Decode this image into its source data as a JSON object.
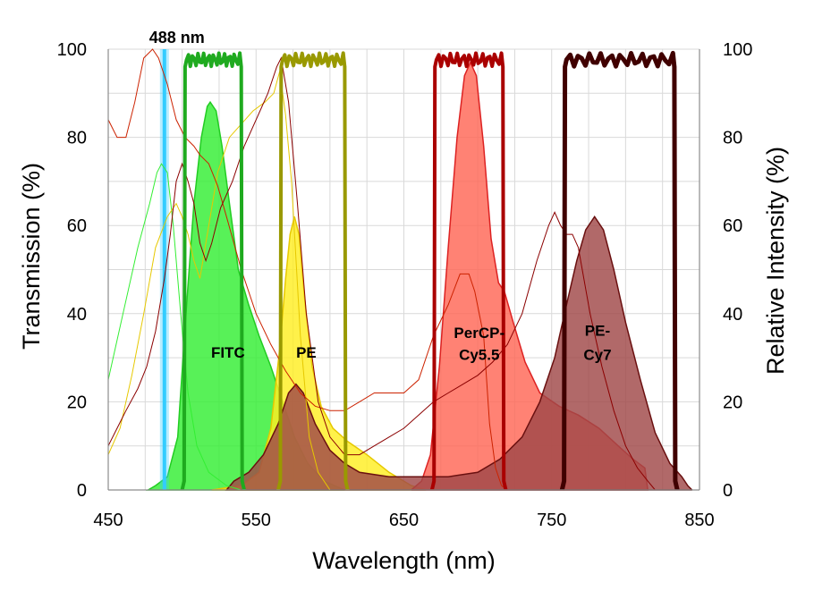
{
  "chart_data": {
    "type": "area",
    "xlabel": "Wavelength (nm)",
    "ylabel": "Transmission (%)",
    "y2label": "Relative Intensity (%)",
    "xlim": [
      450,
      850
    ],
    "ylim": [
      0,
      100
    ],
    "x_ticks": [
      "450",
      "550",
      "650",
      "750",
      "850"
    ],
    "y_ticks": [
      "0",
      "20",
      "40",
      "60",
      "80",
      "100"
    ],
    "y2_ticks": [
      "0",
      "20",
      "40",
      "60",
      "80",
      "100"
    ],
    "laser": {
      "label": "488 nm",
      "wavelength": 488,
      "color": "#33ccff"
    },
    "emission_series": [
      {
        "name": "FITC",
        "color": "#33ee33",
        "edge": "#22cc22",
        "peak_nm": 519,
        "peak": 88,
        "points": [
          [
            477,
            0
          ],
          [
            482,
            1
          ],
          [
            490,
            3
          ],
          [
            497,
            12
          ],
          [
            503,
            42
          ],
          [
            508,
            65
          ],
          [
            513,
            80
          ],
          [
            517,
            87
          ],
          [
            519,
            88
          ],
          [
            523,
            86
          ],
          [
            527,
            78
          ],
          [
            532,
            65
          ],
          [
            538,
            50
          ],
          [
            545,
            42
          ],
          [
            552,
            35
          ],
          [
            560,
            28
          ],
          [
            568,
            20
          ],
          [
            576,
            12
          ],
          [
            585,
            6
          ],
          [
            596,
            2
          ],
          [
            610,
            0
          ]
        ]
      },
      {
        "name": "PE",
        "color": "#ffee22",
        "edge": "#e6c800",
        "peak_nm": 576,
        "peak": 62,
        "points": [
          [
            520,
            0
          ],
          [
            540,
            1
          ],
          [
            552,
            4
          ],
          [
            560,
            14
          ],
          [
            566,
            32
          ],
          [
            570,
            48
          ],
          [
            573,
            58
          ],
          [
            576,
            62
          ],
          [
            579,
            58
          ],
          [
            583,
            43
          ],
          [
            588,
            28
          ],
          [
            594,
            19
          ],
          [
            602,
            14
          ],
          [
            612,
            11
          ],
          [
            625,
            8
          ],
          [
            640,
            4
          ],
          [
            655,
            1
          ],
          [
            665,
            0
          ]
        ]
      },
      {
        "name": "PerCP-Cy5.5",
        "color": "#ff6655",
        "edge": "#dd2222",
        "peak_nm": 695,
        "peak": 97,
        "points": [
          [
            655,
            0
          ],
          [
            662,
            2
          ],
          [
            668,
            8
          ],
          [
            674,
            28
          ],
          [
            680,
            55
          ],
          [
            686,
            80
          ],
          [
            691,
            94
          ],
          [
            695,
            97
          ],
          [
            699,
            94
          ],
          [
            704,
            78
          ],
          [
            709,
            57
          ],
          [
            714,
            47
          ],
          [
            718,
            45
          ],
          [
            724,
            38
          ],
          [
            732,
            29
          ],
          [
            742,
            22
          ],
          [
            755,
            19
          ],
          [
            768,
            17
          ],
          [
            782,
            14
          ],
          [
            795,
            10
          ],
          [
            805,
            7
          ],
          [
            813,
            5
          ],
          [
            815,
            0
          ]
        ]
      },
      {
        "name": "PE-Cy7",
        "color": "#a04848",
        "edge": "#6a1010",
        "peak_nm": 779,
        "peak": 62,
        "points": [
          [
            530,
            0
          ],
          [
            535,
            2
          ],
          [
            545,
            4
          ],
          [
            555,
            8
          ],
          [
            565,
            15
          ],
          [
            572,
            22
          ],
          [
            577,
            24
          ],
          [
            582,
            22
          ],
          [
            590,
            15
          ],
          [
            600,
            9
          ],
          [
            610,
            6
          ],
          [
            620,
            4
          ],
          [
            640,
            3
          ],
          [
            660,
            3
          ],
          [
            680,
            3
          ],
          [
            700,
            4
          ],
          [
            715,
            7
          ],
          [
            730,
            12
          ],
          [
            742,
            20
          ],
          [
            752,
            30
          ],
          [
            760,
            42
          ],
          [
            767,
            52
          ],
          [
            773,
            59
          ],
          [
            779,
            62
          ],
          [
            785,
            59
          ],
          [
            792,
            50
          ],
          [
            800,
            38
          ],
          [
            810,
            25
          ],
          [
            820,
            13
          ],
          [
            830,
            6
          ],
          [
            838,
            3
          ],
          [
            842,
            1
          ],
          [
            845,
            0
          ]
        ]
      }
    ],
    "excitation_series": [
      {
        "name": "FITC ex",
        "color": "#33ee33",
        "width": 1,
        "points": [
          [
            450,
            25
          ],
          [
            460,
            40
          ],
          [
            470,
            55
          ],
          [
            478,
            65
          ],
          [
            483,
            72
          ],
          [
            486,
            74
          ],
          [
            490,
            72
          ],
          [
            494,
            60
          ],
          [
            499,
            40
          ],
          [
            504,
            22
          ],
          [
            510,
            10
          ],
          [
            518,
            4
          ],
          [
            530,
            1
          ],
          [
            540,
            0
          ]
        ]
      },
      {
        "name": "PE ex",
        "color": "#e6c800",
        "width": 1,
        "points": [
          [
            450,
            8
          ],
          [
            458,
            14
          ],
          [
            466,
            26
          ],
          [
            474,
            40
          ],
          [
            482,
            55
          ],
          [
            490,
            62
          ],
          [
            496,
            65
          ],
          [
            500,
            62
          ],
          [
            504,
            58
          ],
          [
            508,
            52
          ],
          [
            512,
            48
          ],
          [
            518,
            60
          ],
          [
            524,
            72
          ],
          [
            532,
            80
          ],
          [
            540,
            83
          ],
          [
            548,
            86
          ],
          [
            556,
            88
          ],
          [
            562,
            90
          ],
          [
            566,
            95
          ],
          [
            570,
            85
          ],
          [
            574,
            70
          ],
          [
            580,
            35
          ],
          [
            586,
            12
          ],
          [
            592,
            4
          ],
          [
            600,
            0
          ]
        ]
      },
      {
        "name": "PerCP ex",
        "color": "#cc2200",
        "width": 1,
        "points": [
          [
            450,
            84
          ],
          [
            456,
            80
          ],
          [
            462,
            80
          ],
          [
            468,
            88
          ],
          [
            474,
            98
          ],
          [
            480,
            100
          ],
          [
            484,
            98
          ],
          [
            490,
            92
          ],
          [
            496,
            84
          ],
          [
            502,
            80
          ],
          [
            508,
            78
          ],
          [
            512,
            76
          ],
          [
            518,
            74
          ],
          [
            524,
            69
          ],
          [
            530,
            62
          ],
          [
            540,
            50
          ],
          [
            550,
            40
          ],
          [
            560,
            33
          ],
          [
            570,
            27
          ],
          [
            580,
            22
          ],
          [
            590,
            19
          ],
          [
            600,
            18
          ],
          [
            610,
            18
          ],
          [
            620,
            20
          ],
          [
            630,
            22
          ],
          [
            640,
            22
          ],
          [
            650,
            22
          ],
          [
            660,
            25
          ],
          [
            670,
            35
          ],
          [
            680,
            42
          ],
          [
            688,
            49
          ],
          [
            694,
            49
          ],
          [
            698,
            45
          ],
          [
            704,
            35
          ],
          [
            708,
            15
          ],
          [
            712,
            5
          ],
          [
            716,
            1
          ],
          [
            720,
            0
          ]
        ]
      },
      {
        "name": "PE-Cy7 ex",
        "color": "#8b0000",
        "width": 1,
        "points": [
          [
            450,
            10
          ],
          [
            456,
            14
          ],
          [
            462,
            18
          ],
          [
            470,
            23
          ],
          [
            476,
            28
          ],
          [
            482,
            36
          ],
          [
            488,
            48
          ],
          [
            492,
            58
          ],
          [
            496,
            70
          ],
          [
            500,
            74
          ],
          [
            504,
            70
          ],
          [
            508,
            65
          ],
          [
            512,
            56
          ],
          [
            516,
            52
          ],
          [
            520,
            56
          ],
          [
            526,
            64
          ],
          [
            534,
            70
          ],
          [
            542,
            78
          ],
          [
            550,
            84
          ],
          [
            558,
            90
          ],
          [
            564,
            96
          ],
          [
            567,
            98
          ],
          [
            572,
            88
          ],
          [
            578,
            65
          ],
          [
            584,
            40
          ],
          [
            592,
            20
          ],
          [
            600,
            12
          ],
          [
            610,
            8
          ],
          [
            620,
            8
          ],
          [
            630,
            10
          ],
          [
            640,
            12
          ],
          [
            650,
            14
          ],
          [
            660,
            17
          ],
          [
            670,
            20
          ],
          [
            680,
            22
          ],
          [
            690,
            24
          ],
          [
            700,
            26
          ],
          [
            710,
            29
          ],
          [
            720,
            33
          ],
          [
            730,
            40
          ],
          [
            740,
            52
          ],
          [
            748,
            60
          ],
          [
            752,
            63
          ],
          [
            756,
            60
          ],
          [
            760,
            58
          ],
          [
            764,
            58
          ],
          [
            768,
            55
          ],
          [
            776,
            40
          ],
          [
            784,
            28
          ],
          [
            792,
            18
          ],
          [
            800,
            10
          ],
          [
            808,
            5
          ],
          [
            815,
            2
          ],
          [
            820,
            0
          ]
        ]
      }
    ],
    "filter_series": [
      {
        "name": "FITC filter",
        "color": "#1faa1f",
        "width": 4,
        "band": [
          502,
          540
        ]
      },
      {
        "name": "PE filter",
        "color": "#999900",
        "width": 4,
        "band": [
          567,
          610
        ]
      },
      {
        "name": "PerCP-Cy5.5 filter",
        "color": "#aa0000",
        "width": 4,
        "band": [
          671,
          717
        ]
      },
      {
        "name": "PE-Cy7 filter",
        "color": "#400000",
        "width": 5,
        "band": [
          759,
          833
        ]
      }
    ],
    "annotations": [
      {
        "text": "FITC",
        "x": 531,
        "y": 30
      },
      {
        "text": "PE",
        "x": 584,
        "y": 30
      },
      {
        "text": "PerCP-",
        "x": 701,
        "y": 34.5
      },
      {
        "text": "Cy5.5",
        "x": 701,
        "y": 29.5
      },
      {
        "text": "PE-",
        "x": 781,
        "y": 35
      },
      {
        "text": "Cy7",
        "x": 781,
        "y": 29.5
      }
    ]
  }
}
